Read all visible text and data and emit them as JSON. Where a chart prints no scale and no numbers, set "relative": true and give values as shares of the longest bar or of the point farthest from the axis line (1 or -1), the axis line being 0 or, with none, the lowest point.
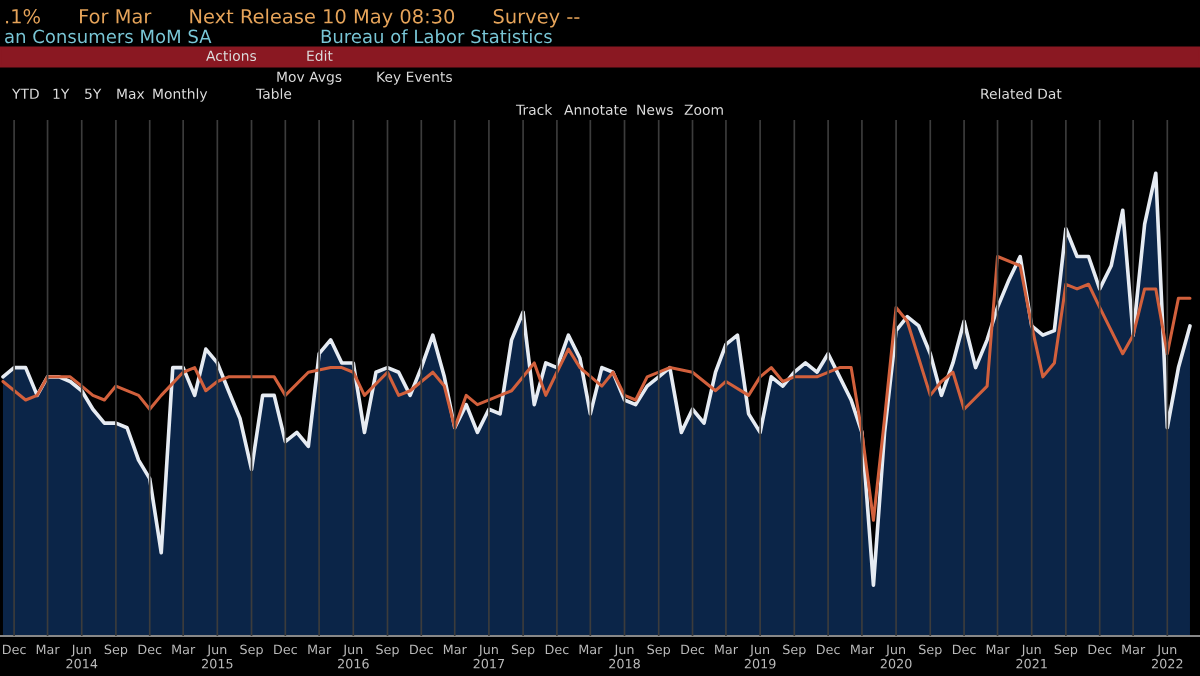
{
  "chart_data": {
    "type": "line",
    "relative": true,
    "title": ".1%      For Mar      Next Release 10 May 08:30      Survey --",
    "subtitle": "an Consumers MoM SA",
    "annotations": [
      "Bureau of Labor Statistics",
      "Actions",
      "Edit",
      "Mov Avgs",
      "Key Events",
      "YTD",
      "1Y",
      "5Y",
      "Max",
      "Monthly",
      "Table",
      "Related Dat",
      "Track",
      "Annotate",
      "News",
      "Zoom"
    ],
    "x": [
      "2013-11",
      "2013-12",
      "2014-01",
      "2014-02",
      "2014-03",
      "2014-04",
      "2014-05",
      "2014-06",
      "2014-07",
      "2014-08",
      "2014-09",
      "2014-10",
      "2014-11",
      "2014-12",
      "2015-01",
      "2015-02",
      "2015-03",
      "2015-04",
      "2015-05",
      "2015-06",
      "2015-07",
      "2015-08",
      "2015-09",
      "2015-10",
      "2015-11",
      "2015-12",
      "2016-01",
      "2016-02",
      "2016-03",
      "2016-04",
      "2016-05",
      "2016-06",
      "2016-07",
      "2016-08",
      "2016-09",
      "2016-10",
      "2016-11",
      "2016-12",
      "2017-01",
      "2017-02",
      "2017-03",
      "2017-04",
      "2017-05",
      "2017-06",
      "2017-07",
      "2017-08",
      "2017-09",
      "2017-10",
      "2017-11",
      "2017-12",
      "2018-01",
      "2018-02",
      "2018-03",
      "2018-04",
      "2018-05",
      "2018-06",
      "2018-07",
      "2018-08",
      "2018-09",
      "2018-10",
      "2018-11",
      "2018-12",
      "2019-01",
      "2019-02",
      "2019-03",
      "2019-04",
      "2019-05",
      "2019-06",
      "2019-07",
      "2019-08",
      "2019-09",
      "2019-10",
      "2019-11",
      "2019-12",
      "2020-01",
      "2020-02",
      "2020-03",
      "2020-04",
      "2020-05",
      "2020-06",
      "2020-07",
      "2020-08",
      "2020-09",
      "2020-10",
      "2020-11",
      "2020-12",
      "2021-01",
      "2021-02",
      "2021-03",
      "2021-04",
      "2021-05",
      "2021-06",
      "2021-07",
      "2021-08",
      "2021-09",
      "2021-10",
      "2021-11",
      "2021-12",
      "2022-01",
      "2022-02",
      "2022-03",
      "2022-04",
      "2022-05",
      "2022-06",
      "2022-07",
      "2022-08"
    ],
    "series": [
      {
        "type": "area",
        "color": "#e6ebf2",
        "values": [
          0.56,
          0.58,
          0.58,
          0.52,
          0.56,
          0.56,
          0.55,
          0.53,
          0.49,
          0.46,
          0.46,
          0.45,
          0.38,
          0.34,
          0.18,
          0.58,
          0.58,
          0.52,
          0.62,
          0.59,
          0.53,
          0.47,
          0.36,
          0.52,
          0.52,
          0.42,
          0.44,
          0.41,
          0.61,
          0.64,
          0.59,
          0.59,
          0.44,
          0.57,
          0.58,
          0.57,
          0.52,
          0.58,
          0.65,
          0.56,
          0.45,
          0.5,
          0.44,
          0.49,
          0.48,
          0.64,
          0.7,
          0.5,
          0.59,
          0.58,
          0.65,
          0.6,
          0.48,
          0.58,
          0.57,
          0.51,
          0.5,
          0.54,
          0.56,
          0.58,
          0.44,
          0.49,
          0.46,
          0.57,
          0.63,
          0.65,
          0.48,
          0.44,
          0.56,
          0.54,
          0.57,
          0.59,
          0.57,
          0.61,
          0.56,
          0.51,
          0.44,
          0.11,
          0.44,
          0.66,
          0.69,
          0.67,
          0.61,
          0.52,
          0.59,
          0.68,
          0.58,
          0.64,
          0.71,
          0.77,
          0.82,
          0.67,
          0.65,
          0.66,
          0.88,
          0.82,
          0.82,
          0.75,
          0.8,
          0.92,
          0.65,
          0.89,
          1,
          0.45,
          0.58,
          0.67
        ]
      },
      {
        "color": "#d2603c",
        "x": [
          "2013-11",
          "2014-01",
          "2014-02",
          "2014-03",
          "2014-05",
          "2014-06",
          "2014-07",
          "2014-08",
          "2014-09",
          "2014-11",
          "2014-12",
          "2015-01",
          "2015-03",
          "2015-04",
          "2015-05",
          "2015-06",
          "2015-07",
          "2015-09",
          "2015-10",
          "2015-11",
          "2015-12",
          "2016-02",
          "2016-04",
          "2016-05",
          "2016-06",
          "2016-07",
          "2016-09",
          "2016-10",
          "2016-11",
          "2017-01",
          "2017-02",
          "2017-03",
          "2017-04",
          "2017-05",
          "2017-07",
          "2017-08",
          "2017-09",
          "2017-10",
          "2017-11",
          "2017-12",
          "2018-01",
          "2018-02",
          "2018-04",
          "2018-05",
          "2018-06",
          "2018-07",
          "2018-08",
          "2018-10",
          "2018-12",
          "2019-01",
          "2019-02",
          "2019-03",
          "2019-05",
          "2019-06",
          "2019-07",
          "2019-08",
          "2019-09",
          "2019-11",
          "2020-01",
          "2020-02",
          "2020-03",
          "2020-04",
          "2020-05",
          "2020-06",
          "2020-07",
          "2020-09",
          "2020-10",
          "2020-11",
          "2020-12",
          "2021-02",
          "2021-03",
          "2021-05",
          "2021-06",
          "2021-07",
          "2021-08",
          "2021-09",
          "2021-10",
          "2021-11",
          "2021-12",
          "2022-02",
          "2022-03",
          "2022-04",
          "2022-05",
          "2022-06",
          "2022-07",
          "2022-08"
        ],
        "values": [
          0.55,
          0.51,
          0.52,
          0.56,
          0.56,
          0.54,
          0.52,
          0.51,
          0.54,
          0.52,
          0.49,
          0.52,
          0.57,
          0.58,
          0.53,
          0.55,
          0.56,
          0.56,
          0.56,
          0.56,
          0.52,
          0.57,
          0.58,
          0.58,
          0.57,
          0.52,
          0.57,
          0.52,
          0.53,
          0.57,
          0.54,
          0.45,
          0.52,
          0.5,
          0.52,
          0.53,
          0.56,
          0.59,
          0.52,
          0.57,
          0.62,
          0.58,
          0.54,
          0.57,
          0.52,
          0.51,
          0.56,
          0.58,
          0.57,
          0.55,
          0.53,
          0.55,
          0.52,
          0.56,
          0.58,
          0.55,
          0.56,
          0.56,
          0.58,
          0.58,
          0.44,
          0.25,
          0.47,
          0.71,
          0.68,
          0.52,
          0.55,
          0.57,
          0.49,
          0.54,
          0.82,
          0.8,
          0.67,
          0.56,
          0.59,
          0.76,
          0.75,
          0.76,
          0.71,
          0.61,
          0.65,
          0.75,
          0.75,
          0.61,
          0.73,
          0.73
        ]
      }
    ],
    "xlim": [
      "2013-10-24",
      "2022-08-28"
    ],
    "xticks": [
      {
        "value": "2013-12",
        "label": "Dec"
      },
      {
        "value": "2014-03",
        "label": "Mar"
      },
      {
        "value": "2014-06",
        "label": "Jun\n2014"
      },
      {
        "value": "2014-09",
        "label": "Sep"
      },
      {
        "value": "2014-12",
        "label": "Dec"
      },
      {
        "value": "2015-03",
        "label": "Mar"
      },
      {
        "value": "2015-06",
        "label": "Jun\n2015"
      },
      {
        "value": "2015-09",
        "label": "Sep"
      },
      {
        "value": "2015-12",
        "label": "Dec"
      },
      {
        "value": "2016-03",
        "label": "Mar"
      },
      {
        "value": "2016-06",
        "label": "Jun\n2016"
      },
      {
        "value": "2016-09",
        "label": "Sep"
      },
      {
        "value": "2016-12",
        "label": "Dec"
      },
      {
        "value": "2017-03",
        "label": "Mar"
      },
      {
        "value": "2017-06",
        "label": "Jun\n2017"
      },
      {
        "value": "2017-09",
        "label": "Sep"
      },
      {
        "value": "2017-12",
        "label": "Dec"
      },
      {
        "value": "2018-03",
        "label": "Mar"
      },
      {
        "value": "2018-06",
        "label": "Jun\n2018"
      },
      {
        "value": "2018-09",
        "label": "Sep"
      },
      {
        "value": "2018-12",
        "label": "Dec"
      },
      {
        "value": "2019-03",
        "label": "Mar"
      },
      {
        "value": "2019-06",
        "label": "Jun\n2019"
      },
      {
        "value": "2019-09",
        "label": "Sep"
      },
      {
        "value": "2019-12",
        "label": "Dec"
      },
      {
        "value": "2020-03",
        "label": "Mar"
      },
      {
        "value": "2020-06",
        "label": "Jun\n2020"
      },
      {
        "value": "2020-09",
        "label": "Sep"
      },
      {
        "value": "2020-12",
        "label": "Dec"
      },
      {
        "value": "2021-03",
        "label": "Mar"
      },
      {
        "value": "2021-06",
        "label": "Jun\n2021"
      },
      {
        "value": "2021-09",
        "label": "Sep"
      },
      {
        "value": "2021-12",
        "label": "Dec"
      },
      {
        "value": "2022-03",
        "label": "Mar"
      },
      {
        "value": "2022-06",
        "label": "Jun\n2022"
      }
    ],
    "grid": "x",
    "line_style": "solid"
  }
}
